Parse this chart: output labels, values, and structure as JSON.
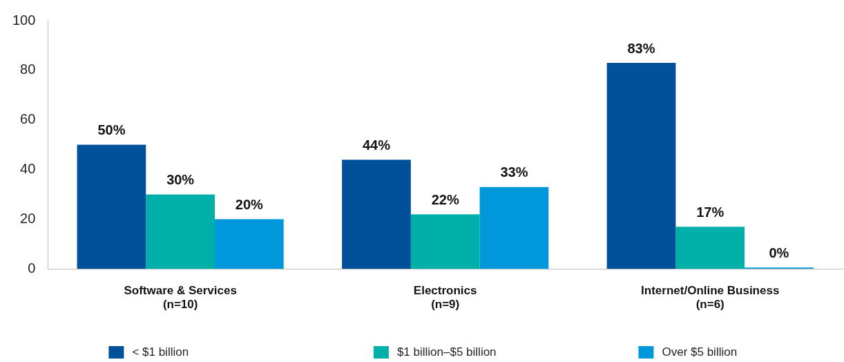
{
  "chart_data": {
    "type": "bar",
    "categories": [
      "Software & Services\n(n=10)",
      "Electronics\n(n=9)",
      "Internet/Online Business\n(n=6)"
    ],
    "series": [
      {
        "name": "< $1 billion",
        "color": "#00509a",
        "values": [
          50,
          44,
          83
        ],
        "value_labels": [
          "50%",
          "44%",
          "83%"
        ]
      },
      {
        "name": "$1 billion–$5 billion",
        "color": "#00b0a8",
        "values": [
          30,
          22,
          17
        ],
        "value_labels": [
          "30%",
          "22%",
          "17%"
        ]
      },
      {
        "name": "Over $5 billion",
        "color": "#0098db",
        "values": [
          20,
          33,
          0
        ],
        "value_labels": [
          "20%",
          "33%",
          "0%"
        ]
      }
    ],
    "ylim": [
      0,
      100
    ],
    "yticks": [
      0,
      20,
      40,
      60,
      80,
      100
    ],
    "grid": false,
    "legend": "bottom"
  }
}
